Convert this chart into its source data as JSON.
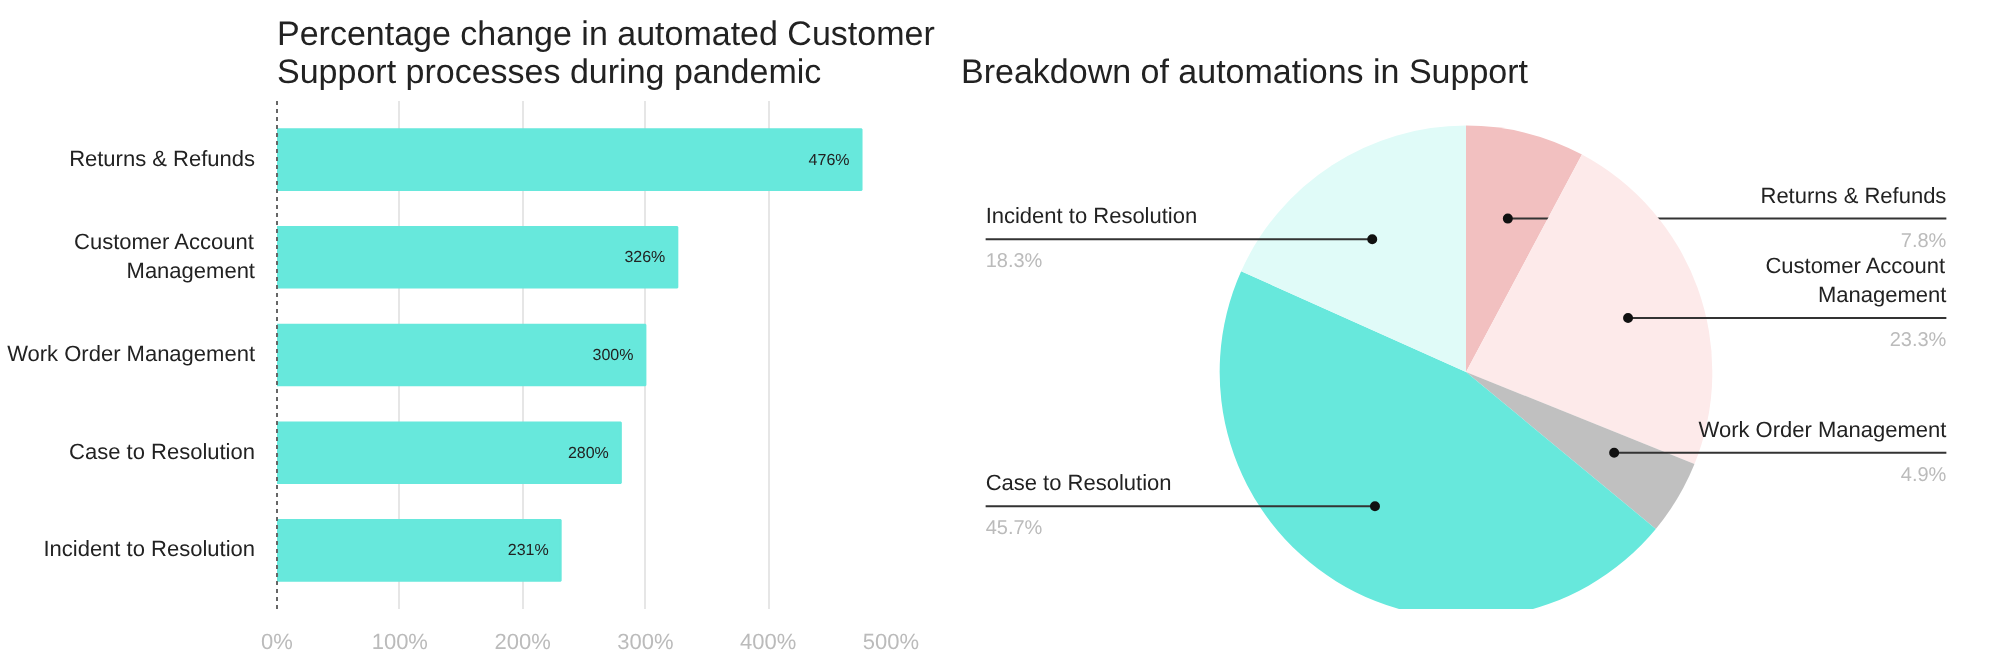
{
  "chart_data": [
    {
      "type": "bar",
      "orientation": "horizontal",
      "title": "Percentage change in automated Customer Support processes during pandemic",
      "categories": [
        "Returns & Refunds",
        "Customer Account Management",
        "Work Order Management",
        "Case to Resolution",
        "Incident to Resolution"
      ],
      "values": [
        476,
        326,
        300,
        280,
        231
      ],
      "value_labels": [
        "476%",
        "326%",
        "300%",
        "280%",
        "231%"
      ],
      "color": "#67e8dc",
      "xlim": [
        0,
        500
      ],
      "xticks": [
        {
          "value": 0,
          "label": "0%"
        },
        {
          "value": 100,
          "label": "100%"
        },
        {
          "value": 200,
          "label": "200%"
        },
        {
          "value": 300,
          "label": "300%"
        },
        {
          "value": 400,
          "label": "400%"
        },
        {
          "value": 500,
          "label": "500%"
        }
      ],
      "grid": "x"
    },
    {
      "type": "pie",
      "title": "Breakdown of automations in Support",
      "categories": [
        "Returns & Refunds",
        "Customer Account Management",
        "Work Order Management",
        "Case to Resolution",
        "Incident to Resolution"
      ],
      "values": [
        7.8,
        23.3,
        4.9,
        45.7,
        18.3
      ],
      "value_labels": [
        "7.8%",
        "23.3%",
        "4.9%",
        "45.7%",
        "18.3%"
      ],
      "colors": [
        "#f2c0c0",
        "#fdeaea",
        "#c0c0c0",
        "#67e8dc",
        "#e0fbf8"
      ]
    }
  ]
}
